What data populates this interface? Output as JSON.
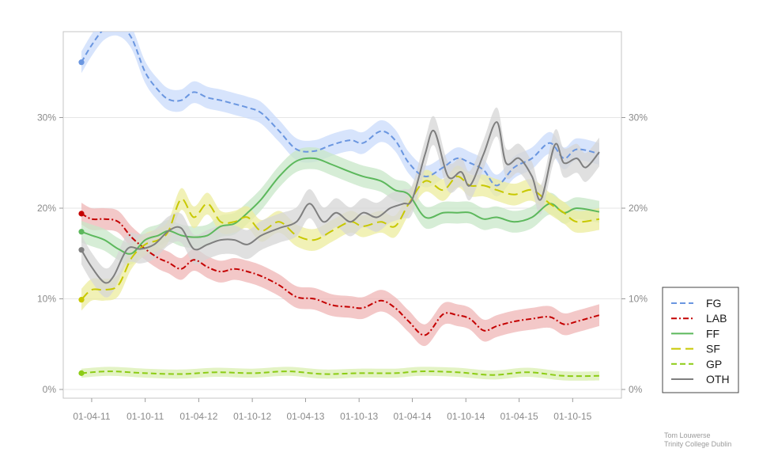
{
  "chart_data": {
    "type": "line",
    "title": "",
    "xlabel": "",
    "ylabel": "",
    "x_range": [
      "2011-02-25",
      "2015-12-31"
    ],
    "ylim": [
      0,
      40
    ],
    "y_ticks": [
      0,
      10,
      20,
      30
    ],
    "y_tick_labels": [
      "0%",
      "10%",
      "20%",
      "30%"
    ],
    "x_ticks": [
      "2011-04-01",
      "2011-10-01",
      "2012-04-01",
      "2012-10-01",
      "2013-04-01",
      "2013-10-01",
      "2014-04-01",
      "2014-10-01",
      "2015-04-01",
      "2015-10-01"
    ],
    "x_tick_labels": [
      "01-04-11",
      "01-10-11",
      "01-04-12",
      "01-10-12",
      "01-04-13",
      "01-10-13",
      "01-04-14",
      "01-10-14",
      "01-04-15",
      "01-10-15"
    ],
    "grid": "horizontal",
    "legend": "right",
    "series": [
      {
        "name": "FG",
        "color": "#6a96e0",
        "band": "#c9dbfb",
        "dash": "dash",
        "points": [
          [
            "2011-02-25",
            36.1
          ],
          [
            "2011-04-01",
            38
          ],
          [
            "2011-05-15",
            39.8
          ],
          [
            "2011-07-01",
            40.2
          ],
          [
            "2011-08-15",
            38.8
          ],
          [
            "2011-10-01",
            35
          ],
          [
            "2011-11-15",
            33
          ],
          [
            "2011-12-20",
            32
          ],
          [
            "2012-02-01",
            31.9
          ],
          [
            "2012-03-15",
            32.8
          ],
          [
            "2012-05-01",
            32.2
          ],
          [
            "2012-06-15",
            31.9
          ],
          [
            "2012-08-01",
            31.5
          ],
          [
            "2012-09-15",
            31.1
          ],
          [
            "2012-11-01",
            30.5
          ],
          [
            "2013-01-01",
            28.5
          ],
          [
            "2013-03-01",
            26.5
          ],
          [
            "2013-05-01",
            26.3
          ],
          [
            "2013-07-01",
            27
          ],
          [
            "2013-09-01",
            27.5
          ],
          [
            "2013-10-15",
            27.2
          ],
          [
            "2013-12-15",
            28.5
          ],
          [
            "2014-02-01",
            27.5
          ],
          [
            "2014-03-20",
            25
          ],
          [
            "2014-05-15",
            23.5
          ],
          [
            "2014-07-15",
            24.5
          ],
          [
            "2014-09-01",
            25.5
          ],
          [
            "2014-10-15",
            25
          ],
          [
            "2014-12-01",
            24.2
          ],
          [
            "2015-01-15",
            22.5
          ],
          [
            "2015-03-15",
            24.5
          ],
          [
            "2015-05-15",
            25.5
          ],
          [
            "2015-07-15",
            27.2
          ],
          [
            "2015-09-01",
            25.5
          ],
          [
            "2015-10-15",
            26.5
          ],
          [
            "2015-12-31",
            26
          ]
        ]
      },
      {
        "name": "LAB",
        "color": "#c40000",
        "band": "#efb5b5",
        "dash": "dashdot",
        "points": [
          [
            "2011-02-25",
            19.4
          ],
          [
            "2011-04-01",
            18.8
          ],
          [
            "2011-05-15",
            18.8
          ],
          [
            "2011-07-01",
            18.5
          ],
          [
            "2011-08-15",
            16.8
          ],
          [
            "2011-10-01",
            15.5
          ],
          [
            "2011-11-15",
            14.5
          ],
          [
            "2011-12-20",
            14
          ],
          [
            "2012-02-01",
            13.3
          ],
          [
            "2012-03-15",
            14.3
          ],
          [
            "2012-05-01",
            13.5
          ],
          [
            "2012-06-15",
            13
          ],
          [
            "2012-08-01",
            13.3
          ],
          [
            "2012-09-15",
            13
          ],
          [
            "2012-11-01",
            12.5
          ],
          [
            "2013-01-01",
            11.5
          ],
          [
            "2013-03-01",
            10.2
          ],
          [
            "2013-05-01",
            10
          ],
          [
            "2013-07-01",
            9.3
          ],
          [
            "2013-09-01",
            9.1
          ],
          [
            "2013-10-15",
            9
          ],
          [
            "2013-12-15",
            9.8
          ],
          [
            "2014-02-01",
            9
          ],
          [
            "2014-03-20",
            7.5
          ],
          [
            "2014-05-15",
            6
          ],
          [
            "2014-07-15",
            8.3
          ],
          [
            "2014-09-01",
            8.2
          ],
          [
            "2014-10-15",
            7.8
          ],
          [
            "2014-12-01",
            6.5
          ],
          [
            "2015-01-15",
            7
          ],
          [
            "2015-03-15",
            7.5
          ],
          [
            "2015-05-15",
            7.8
          ],
          [
            "2015-07-15",
            8
          ],
          [
            "2015-09-01",
            7.2
          ],
          [
            "2015-10-15",
            7.5
          ],
          [
            "2015-12-31",
            8.2
          ]
        ]
      },
      {
        "name": "FF",
        "color": "#5cb85c",
        "band": "#c8e7c8",
        "dash": "solid",
        "points": [
          [
            "2011-02-25",
            17.4
          ],
          [
            "2011-04-01",
            17
          ],
          [
            "2011-05-15",
            16.5
          ],
          [
            "2011-07-01",
            15.5
          ],
          [
            "2011-08-15",
            15
          ],
          [
            "2011-10-01",
            16.5
          ],
          [
            "2011-11-15",
            17
          ],
          [
            "2011-12-20",
            17.5
          ],
          [
            "2012-02-01",
            17
          ],
          [
            "2012-03-15",
            16.8
          ],
          [
            "2012-05-01",
            17
          ],
          [
            "2012-06-15",
            18
          ],
          [
            "2012-08-01",
            18.3
          ],
          [
            "2012-09-15",
            19.5
          ],
          [
            "2012-11-01",
            21
          ],
          [
            "2013-01-01",
            23.5
          ],
          [
            "2013-03-01",
            25.2
          ],
          [
            "2013-05-01",
            25.5
          ],
          [
            "2013-07-01",
            24.8
          ],
          [
            "2013-09-01",
            24
          ],
          [
            "2013-10-15",
            23.5
          ],
          [
            "2013-12-15",
            23
          ],
          [
            "2014-02-01",
            22
          ],
          [
            "2014-03-20",
            21.5
          ],
          [
            "2014-05-15",
            19
          ],
          [
            "2014-07-15",
            19.5
          ],
          [
            "2014-09-01",
            19.5
          ],
          [
            "2014-10-15",
            19.5
          ],
          [
            "2014-12-01",
            18.8
          ],
          [
            "2015-01-15",
            19
          ],
          [
            "2015-03-15",
            18.5
          ],
          [
            "2015-05-15",
            19
          ],
          [
            "2015-07-15",
            20.5
          ],
          [
            "2015-09-01",
            19.5
          ],
          [
            "2015-10-15",
            20
          ],
          [
            "2015-12-31",
            19.6
          ]
        ]
      },
      {
        "name": "SF",
        "color": "#c8c800",
        "band": "#ecec9e",
        "dash": "longdash",
        "points": [
          [
            "2011-02-25",
            9.9
          ],
          [
            "2011-04-01",
            11
          ],
          [
            "2011-05-15",
            11
          ],
          [
            "2011-07-01",
            11.5
          ],
          [
            "2011-08-15",
            14.5
          ],
          [
            "2011-10-01",
            16
          ],
          [
            "2011-11-15",
            16.5
          ],
          [
            "2011-12-20",
            17.5
          ],
          [
            "2012-02-01",
            21
          ],
          [
            "2012-03-15",
            19
          ],
          [
            "2012-05-01",
            20.5
          ],
          [
            "2012-06-15",
            18.5
          ],
          [
            "2012-08-01",
            18.5
          ],
          [
            "2012-09-15",
            19
          ],
          [
            "2012-11-01",
            17.5
          ],
          [
            "2013-01-01",
            18.5
          ],
          [
            "2013-03-01",
            17
          ],
          [
            "2013-05-01",
            16.5
          ],
          [
            "2013-07-01",
            17.5
          ],
          [
            "2013-09-01",
            18.5
          ],
          [
            "2013-10-15",
            18
          ],
          [
            "2013-12-15",
            18.5
          ],
          [
            "2014-02-01",
            18
          ],
          [
            "2014-03-20",
            20.5
          ],
          [
            "2014-05-15",
            23
          ],
          [
            "2014-07-15",
            22
          ],
          [
            "2014-09-01",
            23.5
          ],
          [
            "2014-10-15",
            22.5
          ],
          [
            "2014-12-01",
            22.5
          ],
          [
            "2015-01-15",
            22
          ],
          [
            "2015-03-15",
            21.5
          ],
          [
            "2015-05-15",
            22
          ],
          [
            "2015-07-15",
            20.5
          ],
          [
            "2015-09-01",
            19.5
          ],
          [
            "2015-10-15",
            18.5
          ],
          [
            "2015-12-31",
            18.8
          ]
        ]
      },
      {
        "name": "GP",
        "color": "#8ccc14",
        "band": "#d9efb0",
        "dash": "dash",
        "points": [
          [
            "2011-02-25",
            1.8
          ],
          [
            "2011-06-01",
            2
          ],
          [
            "2011-10-01",
            1.8
          ],
          [
            "2012-02-01",
            1.7
          ],
          [
            "2012-06-01",
            1.9
          ],
          [
            "2012-10-01",
            1.8
          ],
          [
            "2013-02-01",
            2
          ],
          [
            "2013-06-01",
            1.7
          ],
          [
            "2013-10-01",
            1.8
          ],
          [
            "2014-02-01",
            1.8
          ],
          [
            "2014-05-01",
            2
          ],
          [
            "2014-09-01",
            1.9
          ],
          [
            "2015-01-01",
            1.6
          ],
          [
            "2015-05-01",
            1.9
          ],
          [
            "2015-09-01",
            1.5
          ],
          [
            "2015-12-31",
            1.5
          ]
        ]
      },
      {
        "name": "OTH",
        "color": "#7f7f7f",
        "band": "#d6d6d6",
        "dash": "solid",
        "points": [
          [
            "2011-02-25",
            15.4
          ],
          [
            "2011-04-01",
            13.5
          ],
          [
            "2011-05-15",
            11.8
          ],
          [
            "2011-06-15",
            12.5
          ],
          [
            "2011-08-01",
            15.5
          ],
          [
            "2011-09-15",
            15.5
          ],
          [
            "2011-11-01",
            16
          ],
          [
            "2011-12-20",
            17.5
          ],
          [
            "2012-02-01",
            17.8
          ],
          [
            "2012-03-15",
            15.5
          ],
          [
            "2012-05-01",
            16
          ],
          [
            "2012-06-15",
            16.5
          ],
          [
            "2012-08-01",
            16.5
          ],
          [
            "2012-09-15",
            16
          ],
          [
            "2012-11-01",
            17
          ],
          [
            "2013-01-01",
            17.8
          ],
          [
            "2013-03-01",
            18.5
          ],
          [
            "2013-04-15",
            20.5
          ],
          [
            "2013-06-01",
            18.5
          ],
          [
            "2013-07-15",
            19.5
          ],
          [
            "2013-09-01",
            18.5
          ],
          [
            "2013-10-15",
            19.5
          ],
          [
            "2013-12-01",
            19
          ],
          [
            "2014-01-15",
            20
          ],
          [
            "2014-03-01",
            20.5
          ],
          [
            "2014-04-01",
            21
          ],
          [
            "2014-05-15",
            26
          ],
          [
            "2014-06-15",
            28.5
          ],
          [
            "2014-08-01",
            23.5
          ],
          [
            "2014-09-15",
            24
          ],
          [
            "2014-10-15",
            22.5
          ],
          [
            "2014-12-01",
            26
          ],
          [
            "2015-01-15",
            29.5
          ],
          [
            "2015-02-15",
            25
          ],
          [
            "2015-04-01",
            25.5
          ],
          [
            "2015-05-15",
            23.5
          ],
          [
            "2015-06-15",
            21
          ],
          [
            "2015-08-01",
            27
          ],
          [
            "2015-09-01",
            25
          ],
          [
            "2015-10-15",
            25.5
          ],
          [
            "2015-11-15",
            24.5
          ],
          [
            "2015-12-31",
            26.2
          ]
        ]
      }
    ]
  },
  "credit": {
    "line1": "Tom Louwerse",
    "line2": "Trinity College Dublin"
  }
}
